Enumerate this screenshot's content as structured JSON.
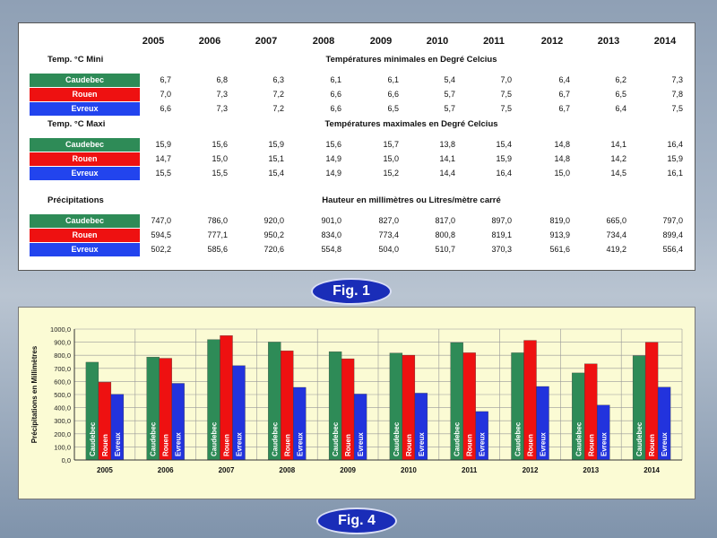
{
  "fig1_label": "Fig. 1",
  "fig4_label": "Fig. 4",
  "table": {
    "years": [
      "2005",
      "2006",
      "2007",
      "2008",
      "2009",
      "2010",
      "2011",
      "2012",
      "2013",
      "2014"
    ],
    "cities": [
      "Caudebec",
      "Rouen",
      "Evreux"
    ],
    "city_colors": {
      "Caudebec": "#2e8b57",
      "Rouen": "#ee1111",
      "Evreux": "#2244ee"
    },
    "sections": [
      {
        "label": "Temp. °C Mini",
        "subtitle": "Températures minimales en Degré Celcius",
        "rows": [
          [
            "6,7",
            "6,8",
            "6,3",
            "6,1",
            "6,1",
            "5,4",
            "7,0",
            "6,4",
            "6,2",
            "7,3"
          ],
          [
            "7,0",
            "7,3",
            "7,2",
            "6,6",
            "6,6",
            "5,7",
            "7,5",
            "6,7",
            "6,5",
            "7,8"
          ],
          [
            "6,6",
            "7,3",
            "7,2",
            "6,6",
            "6,5",
            "5,7",
            "7,5",
            "6,7",
            "6,4",
            "7,5"
          ]
        ]
      },
      {
        "label": "Temp. °C Maxi",
        "subtitle": "Températures maximales en Degré Celcius",
        "rows": [
          [
            "15,9",
            "15,6",
            "15,9",
            "15,6",
            "15,7",
            "13,8",
            "15,4",
            "14,8",
            "14,1",
            "16,4"
          ],
          [
            "14,7",
            "15,0",
            "15,1",
            "14,9",
            "15,0",
            "14,1",
            "15,9",
            "14,8",
            "14,2",
            "15,9"
          ],
          [
            "15,5",
            "15,5",
            "15,4",
            "14,9",
            "15,2",
            "14,4",
            "16,4",
            "15,0",
            "14,5",
            "16,1"
          ]
        ]
      },
      {
        "label": "Précipitations",
        "subtitle": "Hauteur en millimètres ou Litres/mètre carré",
        "rows": [
          [
            "747,0",
            "786,0",
            "920,0",
            "901,0",
            "827,0",
            "817,0",
            "897,0",
            "819,0",
            "665,0",
            "797,0"
          ],
          [
            "594,5",
            "777,1",
            "950,2",
            "834,0",
            "773,4",
            "800,8",
            "819,1",
            "913,9",
            "734,4",
            "899,4"
          ],
          [
            "502,2",
            "585,6",
            "720,6",
            "554,8",
            "504,0",
            "510,7",
            "370,3",
            "561,6",
            "419,2",
            "556,4"
          ]
        ]
      }
    ]
  },
  "chart_data": {
    "type": "bar",
    "categories": [
      "2005",
      "2006",
      "2007",
      "2008",
      "2009",
      "2010",
      "2011",
      "2012",
      "2013",
      "2014"
    ],
    "series": [
      {
        "name": "Caudebec",
        "color": "#2e8b57",
        "values": [
          747.0,
          786.0,
          920.0,
          901.0,
          827.0,
          817.0,
          897.0,
          819.0,
          665.0,
          797.0
        ]
      },
      {
        "name": "Rouen",
        "color": "#ee1111",
        "values": [
          594.5,
          777.1,
          950.2,
          834.0,
          773.4,
          800.8,
          819.1,
          913.9,
          734.4,
          899.4
        ]
      },
      {
        "name": "Evreux",
        "color": "#2233dd",
        "values": [
          502.2,
          585.6,
          720.6,
          554.8,
          504.0,
          510.7,
          370.3,
          561.6,
          419.2,
          556.4
        ]
      }
    ],
    "ylabel": "Précipitations en Millimètres",
    "ylim": [
      0,
      1000
    ],
    "yticks": [
      "0,0",
      "100,0",
      "200,0",
      "300,0",
      "400,0",
      "500,0",
      "600,0",
      "700,0",
      "800,0",
      "900,0",
      "1000,0"
    ],
    "grid": true,
    "background": "#fbfbd4"
  }
}
